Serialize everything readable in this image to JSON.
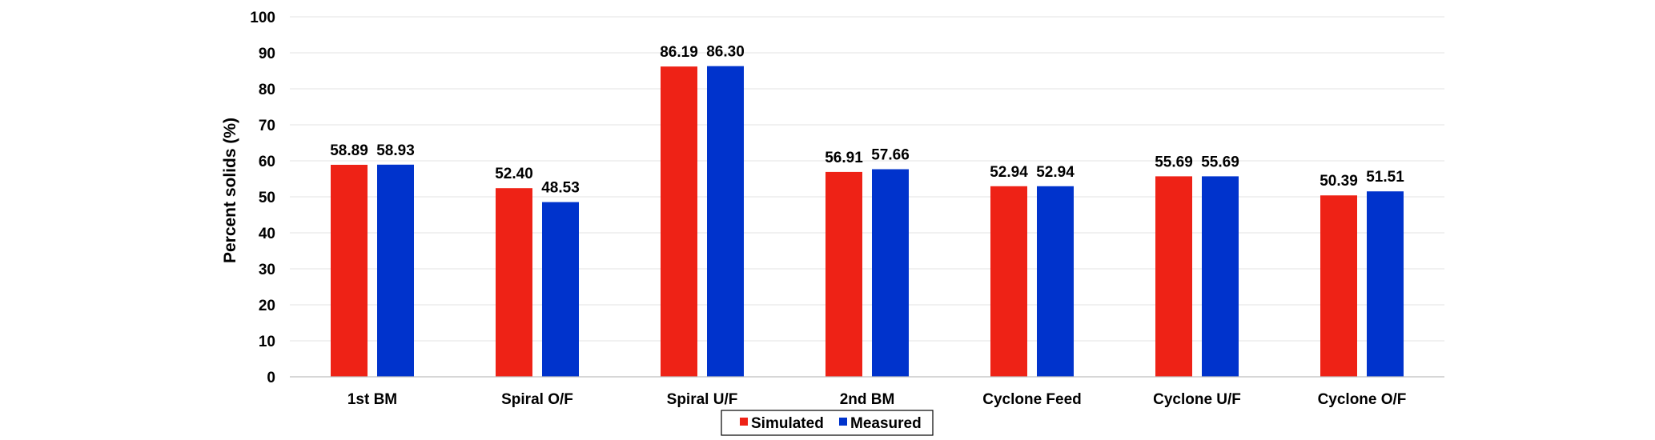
{
  "chart_data": {
    "type": "bar",
    "categories": [
      "1st BM",
      "Spiral O/F",
      "Spiral U/F",
      "2nd BM",
      "Cyclone Feed",
      "Cyclone U/F",
      "Cyclone O/F"
    ],
    "series": [
      {
        "name": "Simulated",
        "color": "#ee2216",
        "values": [
          58.89,
          52.4,
          86.19,
          56.91,
          52.94,
          55.69,
          50.39
        ],
        "labels": [
          "58.89",
          "52.40",
          "86.19",
          "56.91",
          "52.94",
          "55.69",
          "50.39"
        ]
      },
      {
        "name": "Measured",
        "color": "#0033cc",
        "values": [
          58.93,
          48.53,
          86.3,
          57.66,
          52.94,
          55.69,
          51.51
        ],
        "labels": [
          "58.93",
          "48.53",
          "86.30",
          "57.66",
          "52.94",
          "55.69",
          "51.51"
        ]
      }
    ],
    "xlabel": "",
    "ylabel": "Percent solids (%)",
    "ylim": [
      0,
      100
    ],
    "yticks": [
      "0",
      "10",
      "20",
      "30",
      "40",
      "50",
      "60",
      "70",
      "80",
      "90",
      "100"
    ],
    "grid": true,
    "legend_position": "bottom-center"
  }
}
